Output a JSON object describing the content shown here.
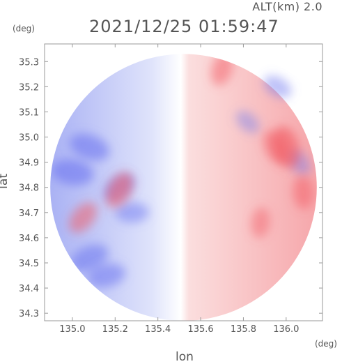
{
  "header": {
    "altitude_label": "ALT(km) 2.0",
    "timestamp": "2021/12/25 01:59:47"
  },
  "chart_data": {
    "type": "heatmap",
    "title": "2021/12/25 01:59:47",
    "subtitle": "ALT(km) 2.0",
    "xlabel": "lon",
    "ylabel": "lat",
    "x_unit": "(deg)",
    "y_unit": "(deg)",
    "xlim": [
      134.87,
      136.17
    ],
    "ylim": [
      34.27,
      35.37
    ],
    "x_ticks": [
      135.0,
      135.2,
      135.4,
      135.6,
      135.8,
      136.0
    ],
    "x_tick_labels": [
      "135.0",
      "135.2",
      "135.4",
      "135.6",
      "135.8",
      "136.0"
    ],
    "y_ticks": [
      34.3,
      34.4,
      34.5,
      34.6,
      34.7,
      34.8,
      34.9,
      35.0,
      35.1,
      35.2,
      35.3
    ],
    "y_tick_labels": [
      "34.3",
      "34.4",
      "34.5",
      "34.6",
      "34.7",
      "34.8",
      "34.9",
      "35.0",
      "35.1",
      "35.2",
      "35.3"
    ],
    "grid": false,
    "colors": {
      "approaching": "#6f78f0",
      "approaching_light": "#dfe3fb",
      "zero": "#ffffff",
      "receding_light": "#fbdede",
      "receding": "#f25a63",
      "axis": "#9a9a9a",
      "text": "#555555"
    },
    "radar_coverage": {
      "center_lon": 135.52,
      "center_lat": 34.8,
      "radius_deg_lat": 0.53,
      "zero_velocity_lon": 135.52
    },
    "regions": [
      {
        "kind": "approaching",
        "lon": 135.22,
        "lat": 34.8,
        "intensity": 0.6
      },
      {
        "kind": "approaching",
        "lon": 135.08,
        "lat": 34.52,
        "intensity": 0.75
      },
      {
        "kind": "approaching",
        "lon": 135.16,
        "lat": 34.45,
        "intensity": 0.7
      },
      {
        "kind": "approaching",
        "lon": 135.28,
        "lat": 34.7,
        "intensity": 0.55
      },
      {
        "kind": "approaching",
        "lon": 135.0,
        "lat": 34.86,
        "intensity": 0.85
      },
      {
        "kind": "approaching",
        "lon": 135.08,
        "lat": 34.96,
        "intensity": 0.8
      },
      {
        "kind": "approaching",
        "lon": 135.96,
        "lat": 35.2,
        "intensity": 0.45
      },
      {
        "kind": "approaching",
        "lon": 135.82,
        "lat": 35.06,
        "intensity": 0.35
      },
      {
        "kind": "approaching",
        "lon": 136.06,
        "lat": 34.9,
        "intensity": 0.4
      },
      {
        "kind": "receding",
        "lon": 135.95,
        "lat": 34.96,
        "intensity": 0.6
      },
      {
        "kind": "receding",
        "lon": 136.0,
        "lat": 34.96,
        "intensity": 0.85
      },
      {
        "kind": "receding",
        "lon": 136.08,
        "lat": 34.78,
        "intensity": 0.55
      },
      {
        "kind": "receding",
        "lon": 135.88,
        "lat": 34.66,
        "intensity": 0.45
      },
      {
        "kind": "receding",
        "lon": 135.7,
        "lat": 35.27,
        "intensity": 0.55
      },
      {
        "kind": "receding",
        "lon": 135.22,
        "lat": 34.79,
        "intensity": 0.7
      },
      {
        "kind": "receding",
        "lon": 135.05,
        "lat": 34.68,
        "intensity": 0.6
      }
    ]
  }
}
